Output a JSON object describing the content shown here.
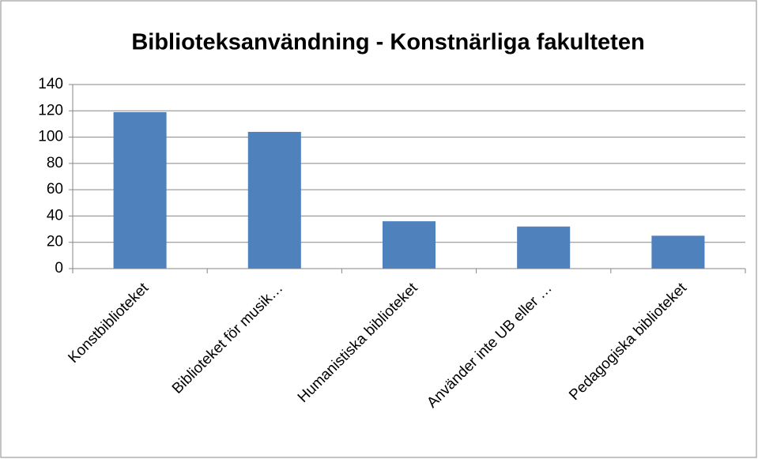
{
  "chart_data": {
    "type": "bar",
    "title": "Biblioteksanvändning - Konstnärliga fakulteten",
    "categories": [
      "Konstbiblioteket",
      "Biblioteket för musik…",
      "Humanistiska biblioteket",
      "Använder inte UB eller …",
      "Pedagogiska biblioteket"
    ],
    "values": [
      119,
      104,
      36,
      32,
      25
    ],
    "color": "#4f81bd",
    "ylim": [
      0,
      140
    ],
    "yticks": [
      0,
      20,
      40,
      60,
      80,
      100,
      120,
      140
    ],
    "grid": true
  }
}
